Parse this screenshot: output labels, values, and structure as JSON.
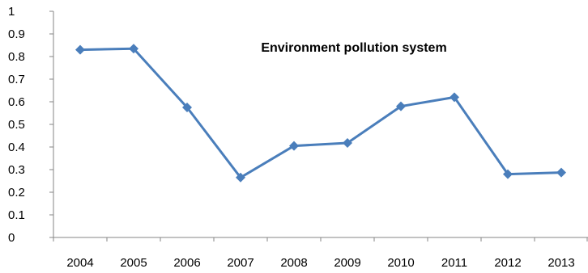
{
  "chart_data": {
    "type": "line",
    "title": "Environment pollution system",
    "xlabel": "",
    "ylabel": "",
    "categories": [
      "2004",
      "2005",
      "2006",
      "2007",
      "2008",
      "2009",
      "2010",
      "2011",
      "2012",
      "2013"
    ],
    "series": [
      {
        "values": [
          0.83,
          0.835,
          0.575,
          0.265,
          0.405,
          0.418,
          0.58,
          0.62,
          0.28,
          0.287
        ]
      }
    ],
    "ylim": [
      0,
      1
    ],
    "yticks": [
      "0",
      "0.1",
      "0.2",
      "0.3",
      "0.4",
      "0.5",
      "0.6",
      "0.7",
      "0.8",
      "0.9",
      "1"
    ],
    "grid": false,
    "legend": "none",
    "marker": "diamond",
    "colors": {
      "series": "#4a7ebb",
      "axis": "#868686"
    }
  }
}
